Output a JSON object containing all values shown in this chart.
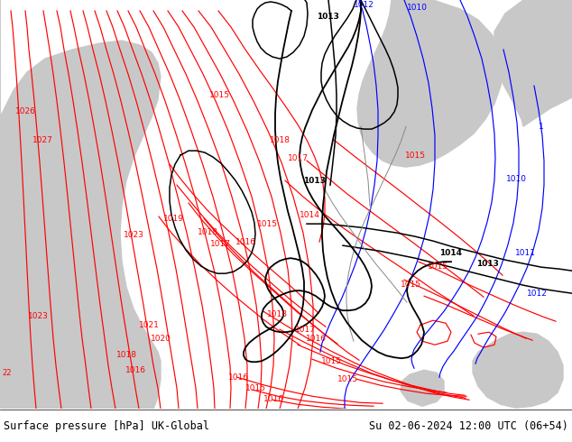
{
  "title_left": "Surface pressure [hPa] UK-Global",
  "title_right": "Su 02-06-2024 12:00 UTC (06+54)",
  "green": "#b4e08c",
  "grey": "#c8c8c8",
  "green2": "#c0e8a0",
  "fig_width": 6.34,
  "fig_height": 4.9,
  "dpi": 100,
  "iw": 634,
  "ih": 453
}
